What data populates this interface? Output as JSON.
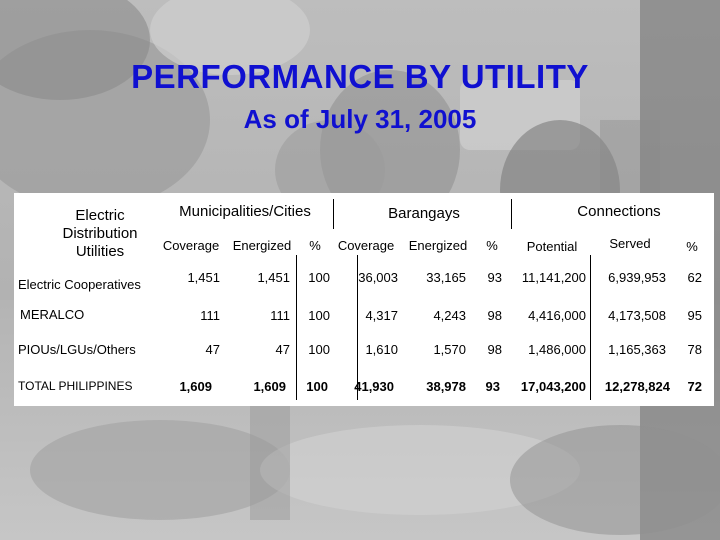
{
  "title": "PERFORMANCE BY UTILITY",
  "subtitle": "As of July 31, 2005",
  "table": {
    "row_header_label": "Electric Distribution Utilities",
    "groups": {
      "municipalities": "Municipalities/Cities",
      "barangays": "Barangays",
      "connections": "Connections"
    },
    "subheaders": {
      "muni_coverage": "Coverage",
      "muni_energized": "Energized",
      "muni_pct": "%",
      "brgy_coverage": "Coverage",
      "brgy_energized": "Energized",
      "brgy_pct": "%",
      "conn_potential": "Potential",
      "conn_served": "Served",
      "conn_pct": "%"
    },
    "rows": [
      {
        "label": "Electric Cooperatives",
        "muni_coverage": "1,451",
        "muni_energized": "1,451",
        "muni_pct": "100",
        "brgy_coverage": "36,003",
        "brgy_energized": "33,165",
        "brgy_pct": "93",
        "conn_potential": "11,141,200",
        "conn_served": "6,939,953",
        "conn_pct": "62"
      },
      {
        "label": "MERALCO",
        "muni_coverage": "111",
        "muni_energized": "111",
        "muni_pct": "100",
        "brgy_coverage": "4,317",
        "brgy_energized": "4,243",
        "brgy_pct": "98",
        "conn_potential": "4,416,000",
        "conn_served": "4,173,508",
        "conn_pct": "95"
      },
      {
        "label": "PIOUs/LGUs/Others",
        "muni_coverage": "47",
        "muni_energized": "47",
        "muni_pct": "100",
        "brgy_coverage": "1,610",
        "brgy_energized": "1,570",
        "brgy_pct": "98",
        "conn_potential": "1,486,000",
        "conn_served": "1,165,363",
        "conn_pct": "78"
      },
      {
        "label": "TOTAL PHILIPPINES",
        "muni_coverage": "1,609",
        "muni_energized": "1,609",
        "muni_pct": "100",
        "brgy_coverage": "41,930",
        "brgy_energized": "38,978",
        "brgy_pct": "93",
        "conn_potential": "17,043,200",
        "conn_served": "12,278,824",
        "conn_pct": "72"
      }
    ]
  }
}
